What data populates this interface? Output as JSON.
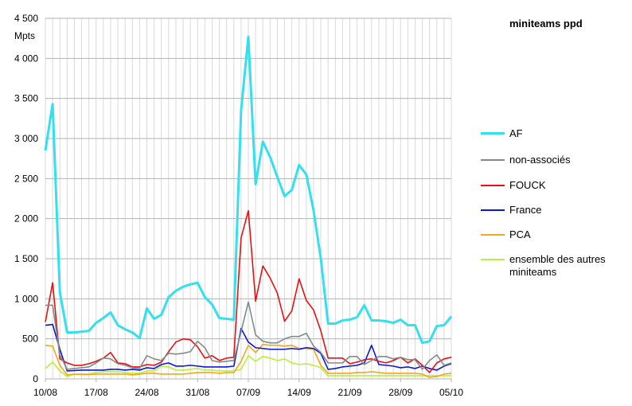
{
  "chart_data": {
    "type": "line",
    "title": "miniteams ppd",
    "ylabel": "Mpts",
    "xlabel": "",
    "ylim": [
      0,
      4500
    ],
    "yticks": [
      0,
      500,
      1000,
      1500,
      2000,
      2500,
      3000,
      3500,
      4000,
      4500
    ],
    "ytick_labels": [
      "0",
      "500",
      "1 000",
      "1 500",
      "2 000",
      "2 500",
      "3 000",
      "3 500",
      "4 000",
      "4 500"
    ],
    "x_days_count": 57,
    "xtick_labels": [
      "10/08",
      "17/08",
      "24/08",
      "31/08",
      "07/09",
      "14/09",
      "21/09",
      "28/09",
      "05/10"
    ],
    "grid": true,
    "legend_position": "right",
    "series": [
      {
        "name": "AF",
        "color": "#33e0ee",
        "values": [
          2850,
          3430,
          1080,
          580,
          580,
          590,
          600,
          700,
          760,
          830,
          670,
          620,
          580,
          510,
          880,
          750,
          800,
          1020,
          1100,
          1150,
          1180,
          1200,
          1020,
          930,
          760,
          750,
          740,
          3350,
          4270,
          2430,
          2960,
          2770,
          2520,
          2280,
          2360,
          2670,
          2550,
          2100,
          1500,
          690,
          690,
          730,
          740,
          770,
          920,
          730,
          730,
          720,
          700,
          740,
          670,
          670,
          450,
          470,
          660,
          670,
          780
        ]
      },
      {
        "name": "non-associés",
        "color": "#7f8c8d",
        "values": [
          920,
          920,
          300,
          120,
          130,
          140,
          150,
          200,
          260,
          250,
          190,
          170,
          140,
          130,
          290,
          250,
          230,
          320,
          310,
          320,
          340,
          470,
          390,
          230,
          210,
          220,
          230,
          590,
          960,
          550,
          470,
          450,
          450,
          500,
          530,
          530,
          570,
          410,
          330,
          200,
          200,
          200,
          280,
          280,
          180,
          230,
          280,
          280,
          250,
          270,
          240,
          240,
          120,
          230,
          300,
          170,
          200
        ]
      },
      {
        "name": "FOUCK",
        "color": "#e81010",
        "values": [
          710,
          1200,
          250,
          200,
          170,
          170,
          190,
          220,
          260,
          330,
          200,
          190,
          150,
          150,
          180,
          170,
          210,
          340,
          460,
          500,
          490,
          400,
          260,
          290,
          230,
          260,
          270,
          1760,
          2100,
          970,
          1410,
          1260,
          1070,
          720,
          850,
          1250,
          980,
          860,
          600,
          260,
          260,
          260,
          190,
          210,
          240,
          250,
          220,
          200,
          230,
          270,
          200,
          250,
          170,
          80,
          200,
          250,
          270
        ]
      },
      {
        "name": "France",
        "color": "#0a18d6",
        "values": [
          670,
          680,
          370,
          100,
          105,
          110,
          110,
          110,
          110,
          120,
          120,
          110,
          120,
          110,
          140,
          130,
          180,
          200,
          160,
          160,
          170,
          160,
          150,
          150,
          150,
          150,
          160,
          630,
          460,
          390,
          380,
          370,
          370,
          370,
          380,
          370,
          390,
          380,
          320,
          120,
          130,
          150,
          160,
          170,
          200,
          420,
          180,
          170,
          160,
          140,
          150,
          130,
          160,
          130,
          110,
          160,
          190
        ]
      },
      {
        "name": "PCA",
        "color": "#f2a81d",
        "values": [
          420,
          410,
          170,
          50,
          60,
          55,
          55,
          60,
          60,
          60,
          60,
          60,
          50,
          60,
          70,
          70,
          60,
          60,
          60,
          60,
          70,
          80,
          80,
          80,
          70,
          80,
          80,
          220,
          420,
          330,
          430,
          420,
          420,
          410,
          420,
          380,
          380,
          370,
          170,
          70,
          70,
          70,
          70,
          80,
          80,
          90,
          80,
          70,
          70,
          70,
          70,
          70,
          60,
          20,
          30,
          60,
          70
        ]
      },
      {
        "name": "ensemble des autres miniteams",
        "color": "#b9f03a",
        "values": [
          130,
          210,
          100,
          30,
          60,
          60,
          60,
          80,
          90,
          90,
          90,
          80,
          70,
          70,
          100,
          100,
          160,
          150,
          110,
          110,
          120,
          130,
          110,
          110,
          100,
          100,
          100,
          120,
          290,
          220,
          280,
          260,
          230,
          250,
          200,
          180,
          190,
          170,
          140,
          40,
          40,
          40,
          40,
          40,
          40,
          40,
          40,
          40,
          40,
          40,
          40,
          40,
          40,
          40,
          40,
          40,
          40
        ]
      }
    ]
  }
}
